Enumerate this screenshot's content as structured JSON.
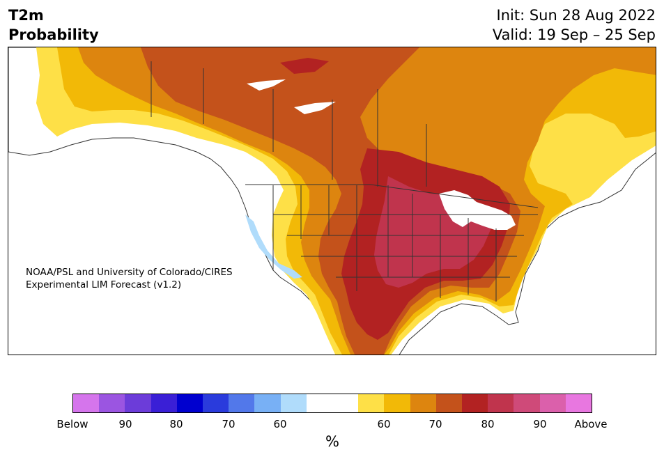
{
  "title": {
    "variable": "T2m",
    "kind": "Probability",
    "init": "Init: Sun 28 Aug 2022",
    "valid": "Valid: 19 Sep – 25 Sep"
  },
  "credit": {
    "line1": "NOAA/PSL and University of Colorado/CIRES",
    "line2": "Experimental LIM Forecast (v1.2)"
  },
  "colorbar": {
    "unit": "%",
    "colors": [
      "#d575ec",
      "#9b55e1",
      "#6c3cd9",
      "#3a1fd6",
      "#0000cf",
      "#2a3bdc",
      "#5278ea",
      "#78b0f5",
      "#b0dcfb",
      "#ffffff",
      "#ffffff",
      "#fee047",
      "#f2b907",
      "#dd850f",
      "#c4521b",
      "#b22222",
      "#c0344d",
      "#cf4a79",
      "#db60ab",
      "#e877e0"
    ],
    "ticks": [
      "Below",
      "90",
      "80",
      "70",
      "60",
      "60",
      "70",
      "80",
      "90",
      "Above"
    ]
  },
  "map_colors": {
    "ocean": "#ffffff",
    "land_neutral": "#ffffff",
    "above_60": "#fee047",
    "above_65": "#f2b907",
    "above_70": "#dd850f",
    "above_75": "#c4521b",
    "above_80": "#b22222",
    "above_85": "#c0344d",
    "below_60": "#b0dcfb",
    "border": "#333333"
  }
}
